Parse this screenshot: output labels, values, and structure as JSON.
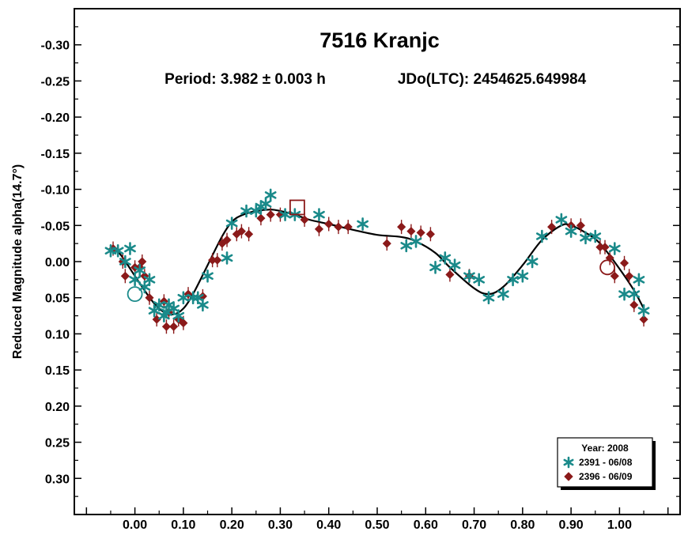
{
  "chart_data": {
    "type": "scatter",
    "title": "7516 Kranjc",
    "subtitle_period": "Period: 3.982 ± 0.003 h",
    "subtitle_epoch": "JDo(LTC): 2454625.649984",
    "ylabel": "Reduced Magnitude alpha(14.7°)",
    "xlabel": "",
    "xlim": [
      -0.125,
      1.125
    ],
    "ylim": [
      0.35,
      -0.35
    ],
    "y_inverted": true,
    "x_ticks": [
      "0.00",
      "0.10",
      "0.20",
      "0.30",
      "0.40",
      "0.50",
      "0.60",
      "0.70",
      "0.80",
      "0.90",
      "1.00"
    ],
    "x_tick_values": [
      0.0,
      0.1,
      0.2,
      0.3,
      0.4,
      0.5,
      0.6,
      0.7,
      0.8,
      0.9,
      1.0
    ],
    "y_ticks": [
      "-0.30",
      "-0.25",
      "-0.20",
      "-0.15",
      "-0.10",
      "-0.05",
      "0.00",
      "0.05",
      "0.10",
      "0.15",
      "0.20",
      "0.25",
      "0.30"
    ],
    "y_tick_values": [
      -0.3,
      -0.25,
      -0.2,
      -0.15,
      -0.1,
      -0.05,
      0.0,
      0.05,
      0.1,
      0.15,
      0.2,
      0.25,
      0.3
    ],
    "grid": false,
    "legend": {
      "placement": "bottom-right",
      "title": "Year: 2008",
      "entries": [
        "2391 - 06/08",
        "2396 - 06/09"
      ]
    },
    "colors": {
      "series1": "#1a8a8a",
      "series2": "#8b1a1a",
      "fit": "#000000",
      "frame": "#000000"
    },
    "series": [
      {
        "name": "2391 - 06/08",
        "marker": "asterisk",
        "x": [
          -0.05,
          -0.035,
          -0.02,
          -0.01,
          0.0,
          0.01,
          0.02,
          0.03,
          0.04,
          0.05,
          0.06,
          0.065,
          0.07,
          0.08,
          0.09,
          0.1,
          0.12,
          0.13,
          0.14,
          0.15,
          0.19,
          0.2,
          0.23,
          0.25,
          0.26,
          0.27,
          0.28,
          0.31,
          0.33,
          0.38,
          0.47,
          0.56,
          0.58,
          0.62,
          0.64,
          0.66,
          0.69,
          0.71,
          0.73,
          0.76,
          0.78,
          0.8,
          0.82,
          0.84,
          0.88,
          0.9,
          0.93,
          0.95,
          0.99,
          1.01,
          1.03,
          1.04,
          1.05
        ],
        "y": [
          -0.015,
          -0.015,
          0.0,
          -0.018,
          0.025,
          0.012,
          0.035,
          0.025,
          0.068,
          0.06,
          0.075,
          0.07,
          0.06,
          0.065,
          0.075,
          0.05,
          0.05,
          0.05,
          0.06,
          0.02,
          -0.005,
          -0.053,
          -0.07,
          -0.07,
          -0.076,
          -0.08,
          -0.092,
          -0.065,
          -0.065,
          -0.065,
          -0.052,
          -0.022,
          -0.028,
          0.008,
          -0.005,
          0.005,
          0.02,
          0.025,
          0.05,
          0.045,
          0.025,
          0.02,
          0.0,
          -0.035,
          -0.058,
          -0.042,
          -0.033,
          -0.035,
          -0.018,
          0.045,
          0.045,
          0.025,
          0.068
        ]
      },
      {
        "name": "2396 - 06/09",
        "marker": "diamond",
        "x": [
          -0.045,
          -0.025,
          -0.02,
          0.0,
          0.01,
          0.015,
          0.02,
          0.03,
          0.045,
          0.06,
          0.065,
          0.07,
          0.08,
          0.09,
          0.1,
          0.11,
          0.14,
          0.16,
          0.17,
          0.18,
          0.19,
          0.21,
          0.22,
          0.235,
          0.26,
          0.28,
          0.3,
          0.35,
          0.38,
          0.4,
          0.42,
          0.44,
          0.52,
          0.55,
          0.57,
          0.59,
          0.61,
          0.65,
          0.69,
          0.86,
          0.9,
          0.92,
          0.96,
          0.97,
          0.98,
          0.99,
          1.01,
          1.02,
          1.03,
          1.05
        ],
        "y": [
          -0.018,
          0.0,
          0.02,
          0.008,
          0.008,
          0.0,
          0.02,
          0.05,
          0.08,
          0.055,
          0.09,
          0.07,
          0.09,
          0.08,
          0.085,
          0.045,
          0.048,
          -0.002,
          -0.002,
          -0.025,
          -0.03,
          -0.038,
          -0.042,
          -0.038,
          -0.06,
          -0.065,
          -0.065,
          -0.058,
          -0.045,
          -0.052,
          -0.048,
          -0.048,
          -0.025,
          -0.048,
          -0.042,
          -0.04,
          -0.038,
          0.018,
          0.02,
          -0.048,
          -0.05,
          -0.05,
          -0.02,
          -0.02,
          -0.005,
          0.02,
          0.002,
          0.02,
          0.06,
          0.08
        ]
      }
    ],
    "highlighted_points": [
      {
        "series": "2391 - 06/08",
        "x": 0.0,
        "y": 0.045,
        "shape": "circle"
      },
      {
        "series": "2396 - 06/09",
        "x": 0.335,
        "y": -0.075,
        "shape": "square"
      },
      {
        "series": "2396 - 06/09",
        "x": 0.975,
        "y": 0.008,
        "shape": "circle"
      }
    ],
    "fit_curve": {
      "x": [
        -0.05,
        -0.03,
        0.0,
        0.02,
        0.04,
        0.06,
        0.08,
        0.1,
        0.12,
        0.15,
        0.18,
        0.2,
        0.22,
        0.25,
        0.28,
        0.3,
        0.33,
        0.36,
        0.4,
        0.45,
        0.5,
        0.55,
        0.58,
        0.62,
        0.65,
        0.7,
        0.73,
        0.76,
        0.8,
        0.84,
        0.88,
        0.9,
        0.93,
        0.96,
        1.0,
        1.03,
        1.05
      ],
      "y": [
        -0.02,
        -0.01,
        0.02,
        0.04,
        0.058,
        0.07,
        0.073,
        0.065,
        0.045,
        0.005,
        -0.035,
        -0.055,
        -0.064,
        -0.07,
        -0.072,
        -0.07,
        -0.065,
        -0.058,
        -0.052,
        -0.044,
        -0.037,
        -0.034,
        -0.028,
        -0.012,
        0.008,
        0.037,
        0.045,
        0.035,
        0.005,
        -0.03,
        -0.05,
        -0.05,
        -0.04,
        -0.025,
        0.01,
        0.04,
        0.065
      ]
    }
  }
}
